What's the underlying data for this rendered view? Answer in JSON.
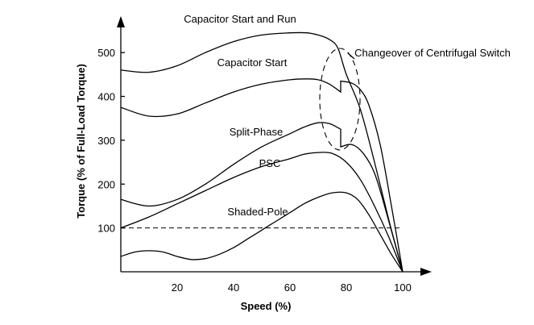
{
  "chart_data": {
    "type": "line",
    "xlabel": "Speed (%)",
    "ylabel": "Torque (% of Full-Load Torque)",
    "xlim": [
      0,
      100
    ],
    "ylim": [
      0,
      550
    ],
    "x_ticks": [
      20,
      40,
      60,
      80,
      100
    ],
    "y_ticks": [
      100,
      200,
      300,
      400,
      500
    ],
    "reference_line": {
      "y": 100,
      "style": "dashed"
    },
    "series": [
      {
        "name": "Capacitor Start and Run",
        "points": [
          [
            0,
            460
          ],
          [
            10,
            455
          ],
          [
            20,
            470
          ],
          [
            30,
            500
          ],
          [
            40,
            525
          ],
          [
            50,
            540
          ],
          [
            60,
            545
          ],
          [
            66,
            545
          ],
          [
            70,
            540
          ],
          [
            74,
            530
          ],
          [
            77,
            510
          ],
          [
            80,
            450
          ],
          [
            85,
            370
          ],
          [
            90,
            250
          ],
          [
            95,
            120
          ],
          [
            100,
            0
          ]
        ]
      },
      {
        "name": "Capacitor Start",
        "points": [
          [
            0,
            375
          ],
          [
            10,
            355
          ],
          [
            20,
            360
          ],
          [
            30,
            385
          ],
          [
            40,
            410
          ],
          [
            50,
            428
          ],
          [
            60,
            438
          ],
          [
            66,
            440
          ],
          [
            70,
            438
          ],
          [
            74,
            428
          ],
          [
            78,
            410
          ],
          [
            78,
            435
          ],
          [
            82,
            430
          ],
          [
            85,
            415
          ],
          [
            88,
            380
          ],
          [
            92,
            290
          ],
          [
            96,
            150
          ],
          [
            100,
            0
          ]
        ]
      },
      {
        "name": "Split-Phase",
        "points": [
          [
            0,
            165
          ],
          [
            10,
            150
          ],
          [
            20,
            165
          ],
          [
            30,
            200
          ],
          [
            40,
            245
          ],
          [
            50,
            285
          ],
          [
            60,
            315
          ],
          [
            65,
            330
          ],
          [
            70,
            340
          ],
          [
            74,
            338
          ],
          [
            78,
            325
          ],
          [
            78,
            285
          ],
          [
            82,
            290
          ],
          [
            86,
            270
          ],
          [
            90,
            225
          ],
          [
            94,
            140
          ],
          [
            100,
            0
          ]
        ]
      },
      {
        "name": "PSC",
        "points": [
          [
            0,
            100
          ],
          [
            10,
            125
          ],
          [
            20,
            155
          ],
          [
            30,
            185
          ],
          [
            40,
            215
          ],
          [
            50,
            240
          ],
          [
            60,
            258
          ],
          [
            65,
            268
          ],
          [
            70,
            272
          ],
          [
            75,
            270
          ],
          [
            80,
            250
          ],
          [
            85,
            210
          ],
          [
            90,
            150
          ],
          [
            95,
            80
          ],
          [
            100,
            0
          ]
        ]
      },
      {
        "name": "Shaded-Pole",
        "points": [
          [
            0,
            35
          ],
          [
            5,
            45
          ],
          [
            10,
            48
          ],
          [
            15,
            45
          ],
          [
            20,
            35
          ],
          [
            25,
            28
          ],
          [
            30,
            30
          ],
          [
            35,
            40
          ],
          [
            40,
            55
          ],
          [
            45,
            75
          ],
          [
            50,
            95
          ],
          [
            55,
            115
          ],
          [
            60,
            135
          ],
          [
            65,
            155
          ],
          [
            70,
            170
          ],
          [
            75,
            180
          ],
          [
            80,
            180
          ],
          [
            84,
            165
          ],
          [
            88,
            130
          ],
          [
            92,
            85
          ],
          [
            96,
            40
          ],
          [
            100,
            0
          ]
        ]
      }
    ],
    "annotations": [
      "Changeover of Centrifugal Switch"
    ]
  }
}
